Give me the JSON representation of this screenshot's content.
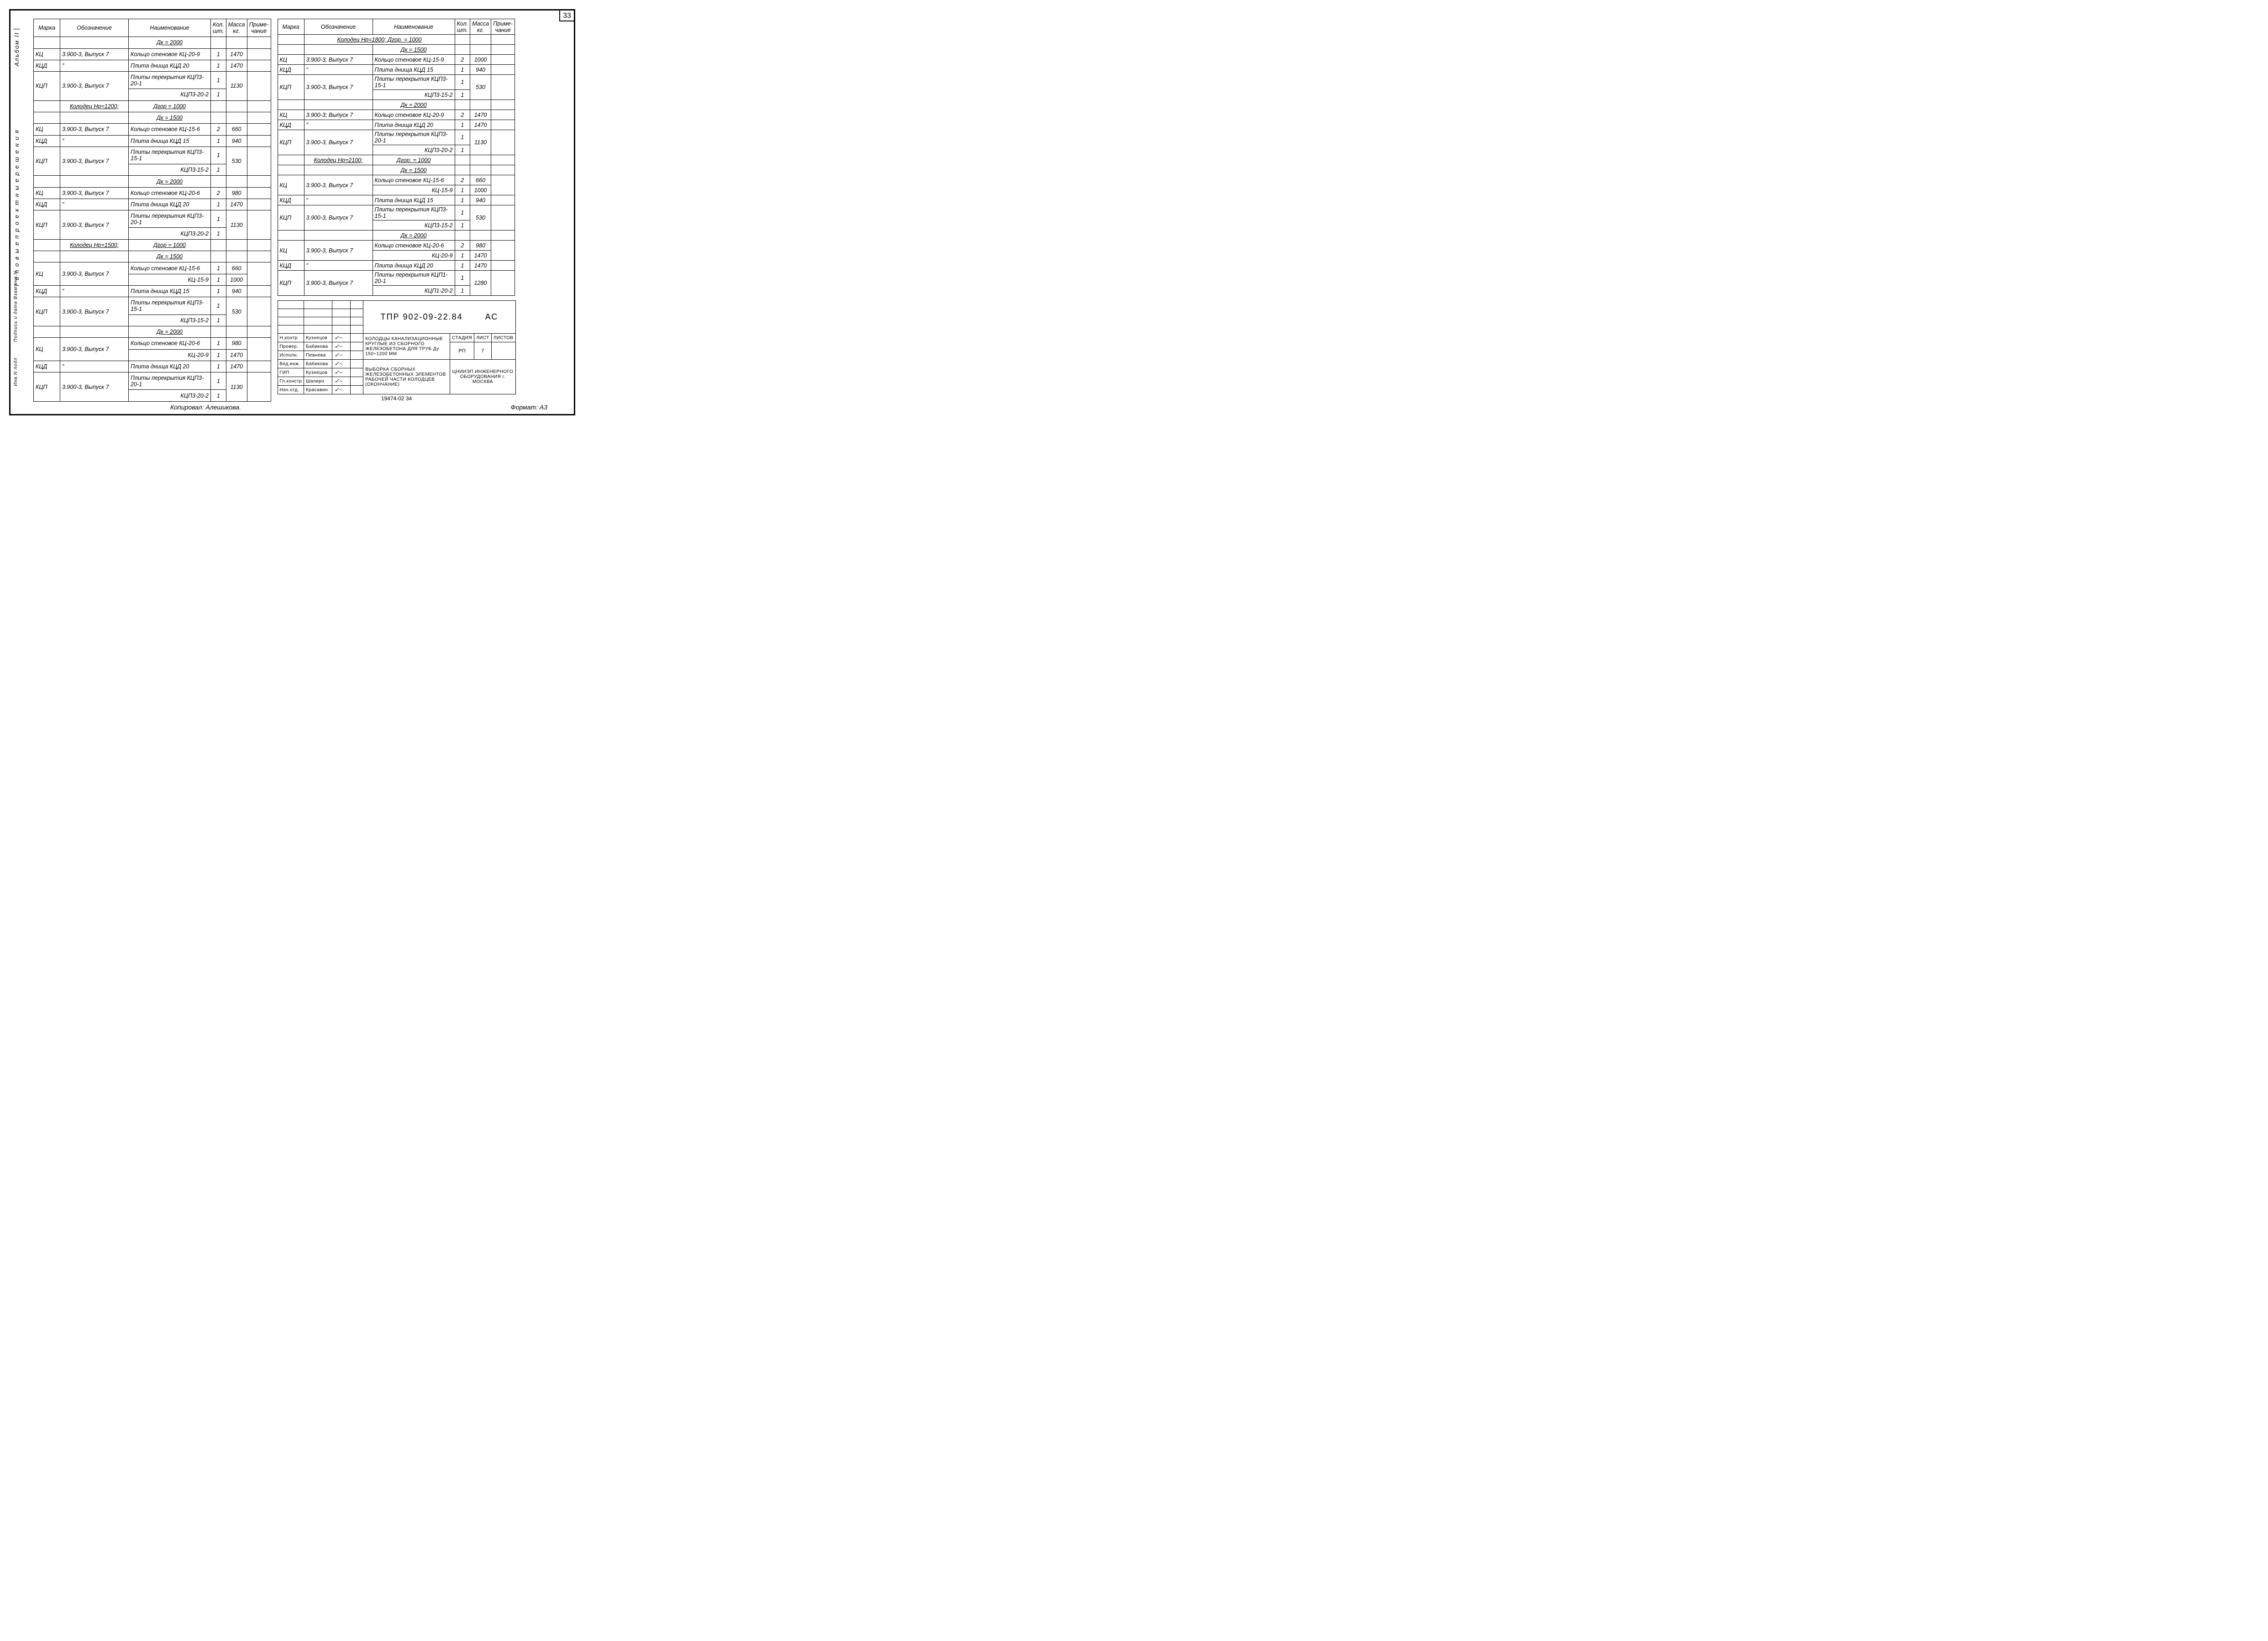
{
  "page_number": "33",
  "side_labels": {
    "l1": "Альбом II",
    "l2": "Т и п о в ы е   п р о е к т н ы е   р е ш е н и я",
    "l3": "Подпись и дата Взам.инв.N",
    "l4": "Инв.N подл"
  },
  "headers": {
    "marka": "Марка",
    "oboz": "Обозначение",
    "naim": "Наименование",
    "kol": "Кол. шт.",
    "mass": "Масса кг.",
    "prim": "Приме- чание"
  },
  "left_rows": [
    {
      "type": "hdr",
      "naim": "Дк = 2000"
    },
    {
      "marka": "КЦ",
      "oboz": "3.900-3, Выпуск 7",
      "naim": "Кольцо стеновое КЦ-20-9",
      "kol": "1",
      "mass": "1470"
    },
    {
      "marka": "КЦД",
      "oboz": "″",
      "naim": "Плита днища КЦД 20",
      "kol": "1",
      "mass": "1470"
    },
    {
      "marka": "КЦП",
      "oboz": "3.900-3, Выпуск 7",
      "naim": "Плиты перекрытия КЦП3-20-1 / КЦП3-20-2",
      "kol": "1 / 1",
      "mass": "1130",
      "split": true
    },
    {
      "type": "hdr",
      "oboz": "Колодец Нр=1200;",
      "naim": "Дгор = 1000",
      "u_oboz": true
    },
    {
      "type": "hdr",
      "naim": "Дк = 1500"
    },
    {
      "marka": "КЦ",
      "oboz": "3.900-3, Выпуск 7",
      "naim": "Кольцо стеновое КЦ-15-6",
      "kol": "2",
      "mass": "660"
    },
    {
      "marka": "КЦД",
      "oboz": "″",
      "naim": "Плита днища КЦД 15",
      "kol": "1",
      "mass": "940"
    },
    {
      "marka": "КЦП",
      "oboz": "3.900-3, Выпуск 7",
      "naim": "Плиты перекрытия КЦП3-15-1 / КЦП3-15-2",
      "kol": "1 / 1",
      "mass": "530",
      "split": true
    },
    {
      "type": "hdr",
      "naim": "Дк = 2000"
    },
    {
      "marka": "КЦ",
      "oboz": "3.900-3, Выпуск 7",
      "naim": "Кольцо стеновое КЦ-20-6",
      "kol": "2",
      "mass": "980"
    },
    {
      "marka": "КЦД",
      "oboz": "″",
      "naim": "Плита днища КЦД 20",
      "kol": "1",
      "mass": "1470"
    },
    {
      "marka": "КЦП",
      "oboz": "3.900-3, Выпуск 7",
      "naim": "Плиты перекрытия КЦП3-20-1 / КЦП3-20-2",
      "kol": "1 / 1",
      "mass": "1130",
      "split": true
    },
    {
      "type": "hdr",
      "oboz": "Колодец Нр=1500;",
      "naim": "Дгор = 1000",
      "u_oboz": true
    },
    {
      "type": "hdr",
      "naim": "Дк = 1500"
    },
    {
      "marka": "КЦ",
      "oboz": "3.900-3, Выпуск 7",
      "naim": "Кольцо стеновое КЦ-15-6 / КЦ-15-9",
      "kol": "1 / 1",
      "mass": "660 / 1000",
      "split": true
    },
    {
      "marka": "КЦД",
      "oboz": "″",
      "naim": "Плита днища КЦД 15",
      "kol": "1",
      "mass": "940"
    },
    {
      "marka": "КЦП",
      "oboz": "3.900-3, Выпуск 7",
      "naim": "Плиты перекрытия КЦП3-15-1 / КЦП3-15-2",
      "kol": "1 / 1",
      "mass": "530",
      "split": true
    },
    {
      "type": "hdr",
      "naim": "Дк = 2000"
    },
    {
      "marka": "КЦ",
      "oboz": "3.900-3, Выпуск 7",
      "naim": "Кольцо стеновое КЦ-20-6 / КЦ-20-9",
      "kol": "1 / 1",
      "mass": "980 / 1470",
      "split": true
    },
    {
      "marka": "КЦД",
      "oboz": "″",
      "naim": "Плита днища КЦД 20",
      "kol": "1",
      "mass": "1470"
    },
    {
      "marka": "КЦП",
      "oboz": "3.900-3, Выпуск 7",
      "naim": "Плиты перекрытия КЦП3-20-1 / КЦП3-20-2",
      "kol": "1 / 1",
      "mass": "1130",
      "split": true
    }
  ],
  "right_rows": [
    {
      "type": "hdr",
      "oboz": "Колодец Нр=1800;",
      "naim": "Дгор. = 1000",
      "span": true
    },
    {
      "type": "hdr",
      "naim": "Дк = 1500"
    },
    {
      "marka": "КЦ",
      "oboz": "3.900-3, Выпуск 7",
      "naim": "Кольцо стеновое КЦ-15-9",
      "kol": "2",
      "mass": "1000"
    },
    {
      "marka": "КЦД",
      "oboz": "″",
      "naim": "Плита днища КЦД 15",
      "kol": "1",
      "mass": "940"
    },
    {
      "marka": "КЦП",
      "oboz": "3.900-3, Выпуск 7",
      "naim": "Плиты перекрытия КЦП3-15-1 / КЦП3-15-2",
      "kol": "1 / 1",
      "mass": "530",
      "split": true
    },
    {
      "type": "hdr",
      "naim": "Дк = 2000"
    },
    {
      "marka": "КЦ",
      "oboz": "3.900-3; Выпуск 7",
      "naim": "Кольцо стеновое КЦ-20-9",
      "kol": "2",
      "mass": "1470"
    },
    {
      "marka": "КЦД",
      "oboz": "″",
      "naim": "Плита днища КЦД 20",
      "kol": "1",
      "mass": "1470"
    },
    {
      "marka": "КЦП",
      "oboz": "3.900-3, Выпуск 7",
      "naim": "Плиты перекрытия КЦП3-20-1 / КЦП3-20-2",
      "kol": "1 / 1",
      "mass": "1130",
      "split": true
    },
    {
      "type": "hdr",
      "oboz": "Колодец Нр=2100;",
      "naim": "Дгор. = 1000",
      "u_oboz": true
    },
    {
      "type": "hdr",
      "naim": "Дк = 1500"
    },
    {
      "marka": "КЦ",
      "oboz": "3.900-3, Выпуск 7",
      "naim": "Кольцо стеновое КЦ-15-6 / КЦ-15-9",
      "kol": "2 / 1",
      "mass": "660 / 1000",
      "split": true
    },
    {
      "marka": "КЦД",
      "oboz": "″",
      "naim": "Плита днища КЦД 15",
      "kol": "1",
      "mass": "940"
    },
    {
      "marka": "КЦП",
      "oboz": "3.900-3, Выпуск 7",
      "naim": "Плиты перекрытия КЦП3-15-1 / КЦП3-15-2",
      "kol": "1 / 1",
      "mass": "530",
      "split": true
    },
    {
      "type": "hdr",
      "naim": "Дк = 2000"
    },
    {
      "marka": "КЦ",
      "oboz": "3.900-3, Выпуск 7",
      "naim": "Кольцо стеновое КЦ-20-6 / КЦ-20-9",
      "kol": "2 / 1",
      "mass": "980 / 1470",
      "split": true
    },
    {
      "marka": "КЦД",
      "oboz": "″",
      "naim": "Плита днища КЦД 20",
      "kol": "1",
      "mass": "1470"
    },
    {
      "marka": "КЦП",
      "oboz": "3.900-3, Выпуск 7",
      "naim": "Плиты перекрытия КЦП1-20-1 / КЦП1-20-2",
      "kol": "1 / 1",
      "mass": "1280",
      "split": true
    }
  ],
  "titleblock": {
    "code": "ТПР 902-09-22.84",
    "series": "АС",
    "roles": [
      {
        "r": "Н.контр",
        "n": "Кузнецов"
      },
      {
        "r": "Провер.",
        "n": "Бабикова"
      },
      {
        "r": "Исполн.",
        "n": "Певнева"
      },
      {
        "r": "Вед.инж.",
        "n": "Бабикова"
      },
      {
        "r": "ГИП",
        "n": "Кузнецов"
      },
      {
        "r": "Гл.констр",
        "n": "Шапиро"
      },
      {
        "r": "Нач.отд.",
        "n": "Красавин"
      }
    ],
    "title1": "КОЛОДЦЫ КАНАЛИЗАЦИОННЫЕ КРУГЛЫЕ ИЗ СБОРНОГО ЖЕЛЕЗОБЕТОНА ДЛЯ ТРУБ Ду 150÷1200 ММ",
    "title2": "ВЫБОРКА СБОРНЫХ ЖЕЛЕЗОБЕТОННЫХ ЭЛЕМЕНТОВ РАБОЧЕЙ ЧАСТИ КОЛОДЦЕВ (ОКОНЧАНИЕ)",
    "stage_h": "СТАДИЯ",
    "sheet_h": "ЛИСТ",
    "sheets_h": "ЛИСТОВ",
    "stage": "РП",
    "sheet": "7",
    "sheets": "",
    "org": "ЦНИИЭП ИНЖЕНЕРНОГО ОБОРУДОВАНИЯ г. МОСКВА",
    "below": "19474-02      34"
  },
  "footer": {
    "copied": "Копировал: Алешикова.",
    "format": "Формат: А3"
  }
}
